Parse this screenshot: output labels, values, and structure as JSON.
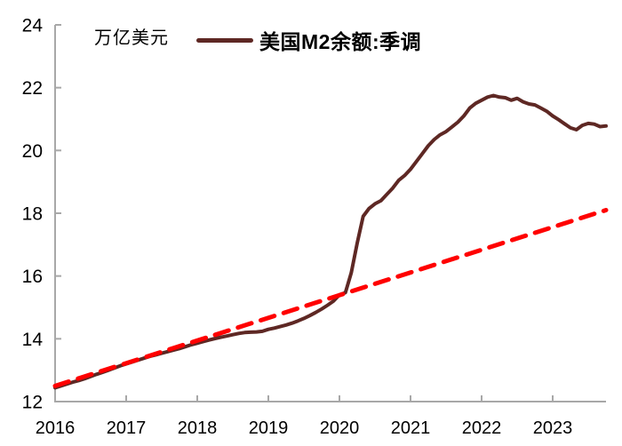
{
  "chart_data": {
    "type": "line",
    "title": "",
    "unit_label": "万亿美元",
    "grid": false,
    "legend_position": "top-center",
    "x_axis": {
      "min": 2016,
      "max": 2023.75,
      "ticks": [
        2016,
        2017,
        2018,
        2019,
        2020,
        2021,
        2022,
        2023
      ]
    },
    "y_axis": {
      "min": 12,
      "max": 24,
      "ticks": [
        12,
        14,
        16,
        18,
        20,
        22,
        24
      ]
    },
    "axis_color": "#a8a8a8",
    "text_color": "#000000",
    "series": [
      {
        "name": "美国M2余额:季调",
        "type": "line",
        "style": "solid",
        "color": "#5e2824",
        "x_start": 2016,
        "x_step_years": 0.0833333,
        "frequency": "monthly",
        "values": [
          12.44,
          12.5,
          12.56,
          12.62,
          12.67,
          12.73,
          12.8,
          12.87,
          12.93,
          13.0,
          13.07,
          13.14,
          13.2,
          13.26,
          13.32,
          13.38,
          13.44,
          13.49,
          13.54,
          13.59,
          13.64,
          13.69,
          13.75,
          13.81,
          13.86,
          13.91,
          13.96,
          14.01,
          14.05,
          14.09,
          14.13,
          14.17,
          14.2,
          14.21,
          14.22,
          14.24,
          14.3,
          14.34,
          14.39,
          14.44,
          14.5,
          14.57,
          14.65,
          14.74,
          14.84,
          14.95,
          15.07,
          15.2,
          15.4,
          15.47,
          16.1,
          17.05,
          17.9,
          18.15,
          18.3,
          18.4,
          18.6,
          18.8,
          19.05,
          19.2,
          19.4,
          19.65,
          19.9,
          20.15,
          20.35,
          20.5,
          20.6,
          20.75,
          20.9,
          21.1,
          21.35,
          21.5,
          21.6,
          21.7,
          21.75,
          21.7,
          21.68,
          21.6,
          21.66,
          21.55,
          21.48,
          21.45,
          21.35,
          21.25,
          21.1,
          20.98,
          20.85,
          20.72,
          20.66,
          20.8,
          20.86,
          20.84,
          20.76,
          20.78
        ]
      }
    ],
    "trend_line": {
      "style": "dashed",
      "color": "#ff0000",
      "points": [
        [
          2016.0,
          12.5
        ],
        [
          2023.75,
          18.1
        ]
      ]
    }
  }
}
